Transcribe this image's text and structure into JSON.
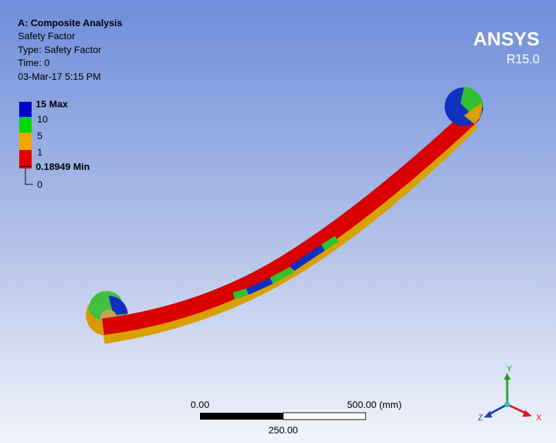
{
  "header": {
    "title": "A: Composite Analysis",
    "lines": [
      "Safety Factor",
      "Type: Safety Factor",
      "Time: 0",
      "03-Mar-17 5:15 PM"
    ]
  },
  "logo": {
    "name": "ANSYS",
    "version": "R15.0"
  },
  "legend": {
    "entries": [
      "15 Max",
      "10",
      "5",
      "1",
      "0.18949 Min",
      "0"
    ]
  },
  "scale_bar": {
    "labels": [
      "0.00",
      "500.00 (mm)",
      "250.00"
    ]
  },
  "triad": {
    "labels": [
      "Y",
      "X",
      "Z"
    ]
  }
}
